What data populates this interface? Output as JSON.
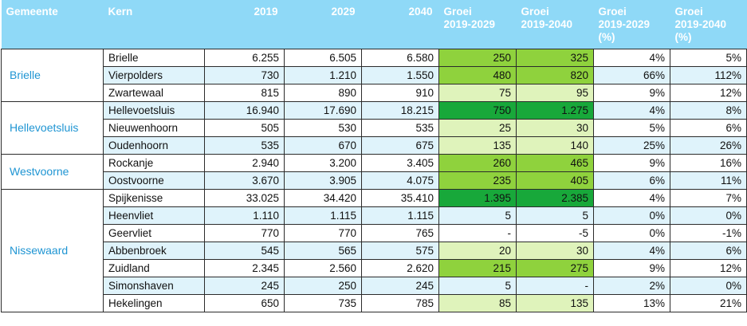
{
  "headers": {
    "gemeente": "Gemeente",
    "kern": "Kern",
    "y2019": "2019",
    "y2029": "2029",
    "y2040": "2040",
    "groei_2029_l1": "Groei",
    "groei_2029_l2": "2019-2029",
    "groei_2040_l1": "Groei",
    "groei_2040_l2": "2019-2040",
    "groei_pct_2029_l1": "Groei",
    "groei_pct_2029_l2": "2019-2029",
    "groei_pct_2029_l3": "(%)",
    "groei_pct_2040_l1": "Groei",
    "groei_pct_2040_l2": "2019-2040",
    "groei_pct_2040_l3": "(%)"
  },
  "colors": {
    "header_bg": "#8fd9f7",
    "gemeente_text": "#1f95d3",
    "row_blue": "#dff3fb",
    "green_light": "#dff3bb",
    "green_mid": "#8fd23d",
    "green_dark": "#18a83a"
  },
  "gemeenten": [
    {
      "name": "Brielle",
      "rows": [
        {
          "kern": "Brielle",
          "y2019": "6.255",
          "y2029": "6.505",
          "y2040": "6.580",
          "g2029": "250",
          "g2040": "325",
          "p2029": "4%",
          "p2040": "5%",
          "c2029": "mid",
          "c2040": "mid"
        },
        {
          "kern": "Vierpolders",
          "y2019": "730",
          "y2029": "1.210",
          "y2040": "1.550",
          "g2029": "480",
          "g2040": "820",
          "p2029": "66%",
          "p2040": "112%",
          "c2029": "mid",
          "c2040": "mid"
        },
        {
          "kern": "Zwartewaal",
          "y2019": "815",
          "y2029": "890",
          "y2040": "910",
          "g2029": "75",
          "g2040": "95",
          "p2029": "9%",
          "p2040": "12%",
          "c2029": "light",
          "c2040": "light"
        }
      ]
    },
    {
      "name": "Hellevoetsluis",
      "rows": [
        {
          "kern": "Hellevoetsluis",
          "y2019": "16.940",
          "y2029": "17.690",
          "y2040": "18.215",
          "g2029": "750",
          "g2040": "1.275",
          "p2029": "4%",
          "p2040": "8%",
          "c2029": "dark",
          "c2040": "dark"
        },
        {
          "kern": "Nieuwenhoorn",
          "y2019": "505",
          "y2029": "530",
          "y2040": "535",
          "g2029": "25",
          "g2040": "30",
          "p2029": "5%",
          "p2040": "6%",
          "c2029": "light",
          "c2040": "light"
        },
        {
          "kern": "Oudenhoorn",
          "y2019": "535",
          "y2029": "670",
          "y2040": "675",
          "g2029": "135",
          "g2040": "140",
          "p2029": "25%",
          "p2040": "26%",
          "c2029": "light",
          "c2040": "light"
        }
      ]
    },
    {
      "name": "Westvoorne",
      "rows": [
        {
          "kern": "Rockanje",
          "y2019": "2.940",
          "y2029": "3.200",
          "y2040": "3.405",
          "g2029": "260",
          "g2040": "465",
          "p2029": "9%",
          "p2040": "16%",
          "c2029": "mid",
          "c2040": "mid"
        },
        {
          "kern": "Oostvoorne",
          "y2019": "3.670",
          "y2029": "3.905",
          "y2040": "4.075",
          "g2029": "235",
          "g2040": "405",
          "p2029": "6%",
          "p2040": "11%",
          "c2029": "mid",
          "c2040": "mid"
        }
      ]
    },
    {
      "name": "Nissewaard",
      "rows": [
        {
          "kern": "Spijkenisse",
          "y2019": "33.025",
          "y2029": "34.420",
          "y2040": "35.410",
          "g2029": "1.395",
          "g2040": "2.385",
          "p2029": "4%",
          "p2040": "7%",
          "c2029": "dark",
          "c2040": "dark"
        },
        {
          "kern": "Heenvliet",
          "y2019": "1.110",
          "y2029": "1.115",
          "y2040": "1.115",
          "g2029": "5",
          "g2040": "5",
          "p2029": "0%",
          "p2040": "0%",
          "c2029": "none",
          "c2040": "none"
        },
        {
          "kern": "Geervliet",
          "y2019": "770",
          "y2029": "770",
          "y2040": "765",
          "g2029": "-",
          "g2040": "-5",
          "p2029": "0%",
          "p2040": "-1%",
          "c2029": "none",
          "c2040": "none"
        },
        {
          "kern": "Abbenbroek",
          "y2019": "545",
          "y2029": "565",
          "y2040": "575",
          "g2029": "20",
          "g2040": "30",
          "p2029": "4%",
          "p2040": "6%",
          "c2029": "light",
          "c2040": "light"
        },
        {
          "kern": "Zuidland",
          "y2019": "2.345",
          "y2029": "2.560",
          "y2040": "2.620",
          "g2029": "215",
          "g2040": "275",
          "p2029": "9%",
          "p2040": "12%",
          "c2029": "mid",
          "c2040": "mid"
        },
        {
          "kern": "Simonshaven",
          "y2019": "245",
          "y2029": "250",
          "y2040": "245",
          "g2029": "5",
          "g2040": "-",
          "p2029": "2%",
          "p2040": "0%",
          "c2029": "none",
          "c2040": "none"
        },
        {
          "kern": "Hekelingen",
          "y2019": "650",
          "y2029": "735",
          "y2040": "785",
          "g2029": "85",
          "g2040": "135",
          "p2029": "13%",
          "p2040": "21%",
          "c2029": "light",
          "c2040": "light"
        }
      ]
    }
  ]
}
